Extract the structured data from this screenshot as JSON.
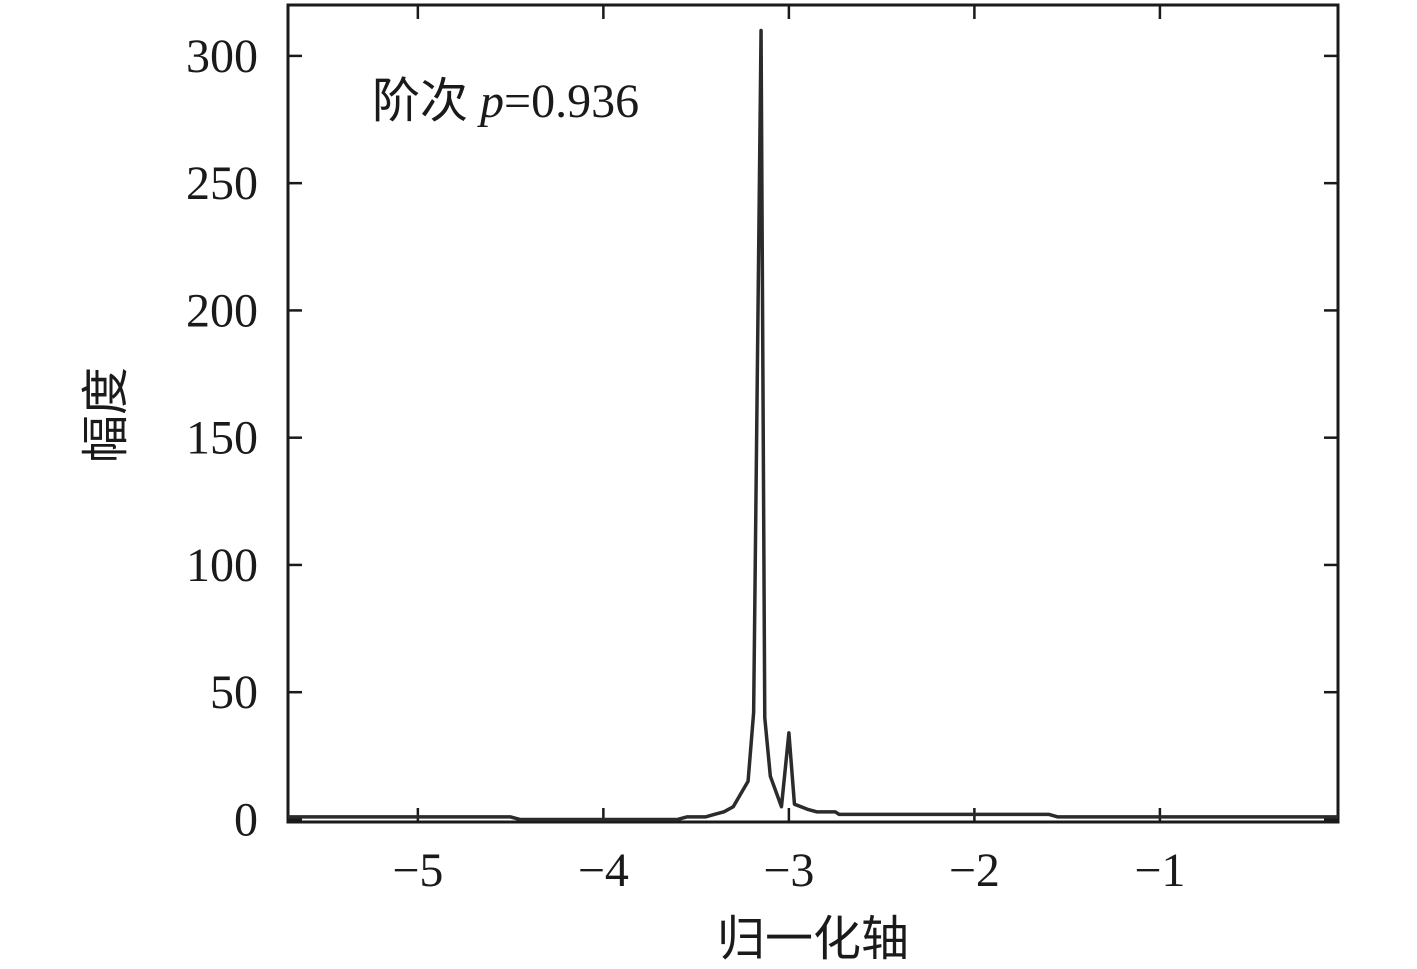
{
  "chart_data": {
    "type": "line",
    "annotation": [
      "阶次 ",
      "p",
      "=0.936"
    ],
    "xlabel": "归一化轴",
    "ylabel": "幅度",
    "x": [
      -5.7,
      -4.5,
      -4.45,
      -3.6,
      -3.55,
      -3.45,
      -3.4,
      -3.35,
      -3.3,
      -3.22,
      -3.19,
      -3.15,
      -3.13,
      -3.1,
      -3.04,
      -3.0,
      -2.97,
      -2.9,
      -2.85,
      -2.75,
      -2.73,
      -1.6,
      -1.55,
      -0.04
    ],
    "series": [
      {
        "color": "#2b2b2b",
        "values": [
          1,
          1,
          0,
          0,
          1,
          1,
          2,
          3,
          5,
          15,
          42,
          310,
          40,
          17,
          5,
          34,
          6,
          4,
          3,
          3,
          2,
          2,
          1,
          1
        ]
      }
    ],
    "xlim": [
      -5.7,
      -0.04
    ],
    "ylim": [
      -1,
      320
    ],
    "xticks": [
      {
        "value": -5,
        "label": "−5"
      },
      {
        "value": -4,
        "label": "−4"
      },
      {
        "value": -3,
        "label": "−3"
      },
      {
        "value": -2,
        "label": "−2"
      },
      {
        "value": -1,
        "label": "−1"
      }
    ],
    "yticks": [
      0,
      50,
      100,
      150,
      200,
      250,
      300
    ]
  }
}
